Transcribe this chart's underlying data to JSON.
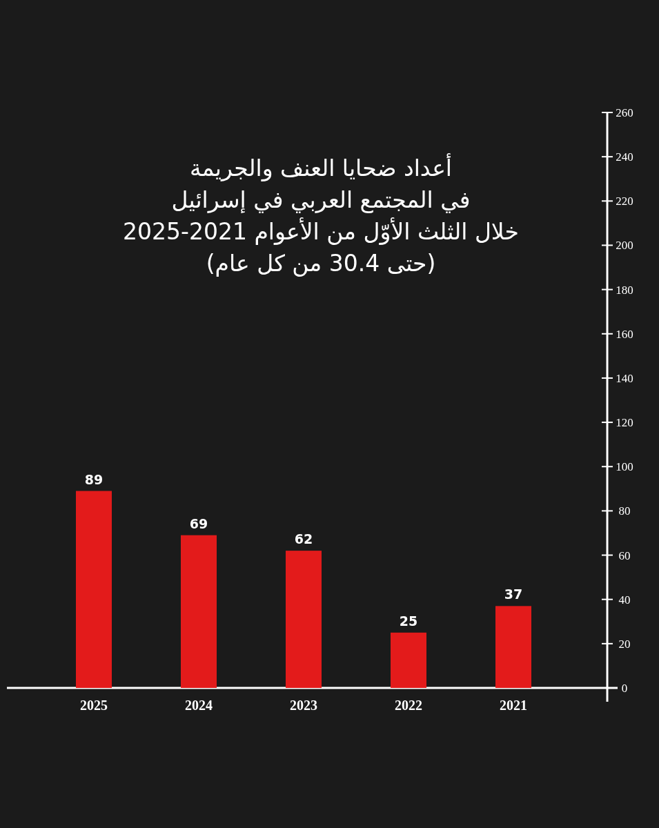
{
  "chart_data": {
    "type": "bar",
    "title": "أعداد ضحايا العنف والجريمة\nفي المجتمع العربي في إسرائيل\nخلال الثلث الأوّل من الأعوام 2021-2025",
    "subtitle": "(حتى 30.4 من كل عام)",
    "categories": [
      "2025",
      "2024",
      "2023",
      "2022",
      "2021"
    ],
    "values": [
      89,
      69,
      62,
      25,
      37
    ],
    "color": "#e31b1b",
    "data_labels": true,
    "ylim": [
      0,
      260
    ],
    "yticks": [
      0,
      20,
      40,
      60,
      80,
      100,
      120,
      140,
      160,
      180,
      200,
      220,
      240,
      260
    ]
  }
}
